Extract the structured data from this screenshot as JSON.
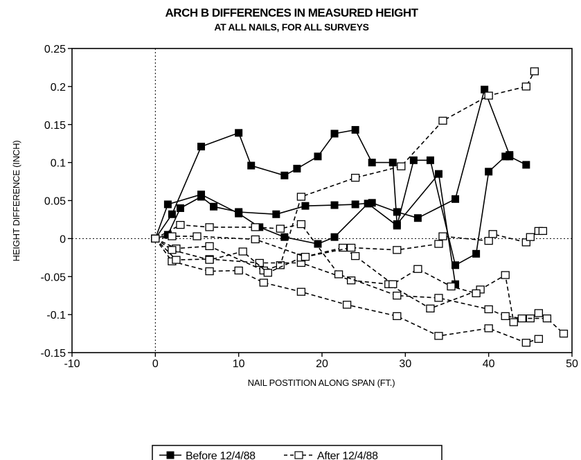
{
  "chart_data": {
    "type": "line",
    "title": "ARCH B DIFFERENCES IN MEASURED HEIGHT",
    "subtitle": "AT ALL NAILS, FOR ALL SURVEYS",
    "xlabel": "NAIL POSTITION ALONG SPAN (FT.)",
    "ylabel": "HEIGHT DIFFERENCE (INCH)",
    "xlim": [
      -10,
      50
    ],
    "ylim": [
      -0.15,
      0.25
    ],
    "x_ticks": [
      "-10",
      "0",
      "10",
      "20",
      "30",
      "40",
      "50"
    ],
    "y_ticks": [
      "0.25",
      "0.2",
      "0.15",
      "0.1",
      "0.05",
      "0",
      "-0.05",
      "-0.1",
      "-0.15"
    ],
    "x_tick_values": [
      -10,
      0,
      10,
      20,
      30,
      40,
      50
    ],
    "y_tick_values": [
      0.25,
      0.2,
      0.15,
      0.1,
      0.05,
      0,
      -0.05,
      -0.1,
      -0.15
    ],
    "reference_lines": {
      "x": 0,
      "y": 0,
      "style": "dotted"
    },
    "legend": {
      "position": "bottom-center",
      "entries": [
        "Before 12/4/88",
        "After 12/4/88"
      ]
    },
    "series": [
      {
        "name": "Before 12/4/88",
        "marker": "filled-square",
        "line": "solid",
        "points": [
          [
            0,
            0
          ],
          [
            1.5,
            0.045
          ],
          [
            5.5,
            0.058
          ],
          [
            10,
            0.033
          ],
          [
            12.5,
            0.015
          ],
          [
            15.5,
            0.002
          ],
          [
            19.5,
            -0.007
          ],
          [
            21.5,
            0.002
          ],
          [
            25.5,
            0.046
          ],
          [
            29,
            0.017
          ],
          [
            31,
            0.103
          ],
          [
            33,
            0.103
          ],
          [
            36,
            -0.035
          ],
          [
            38.5,
            -0.02
          ],
          [
            40,
            0.088
          ],
          [
            42,
            0.108
          ],
          [
            42.5,
            0.108
          ],
          [
            44.5,
            0.097
          ]
        ]
      },
      {
        "name": "Before 12/4/88",
        "marker": "filled-square",
        "line": "solid",
        "points": [
          [
            0,
            0
          ],
          [
            2,
            0.032
          ],
          [
            5.5,
            0.121
          ],
          [
            10,
            0.139
          ],
          [
            11.5,
            0.096
          ],
          [
            15.5,
            0.083
          ],
          [
            17,
            0.092
          ],
          [
            19.5,
            0.108
          ],
          [
            21.5,
            0.138
          ],
          [
            24,
            0.143
          ],
          [
            26,
            0.1
          ],
          [
            28.5,
            0.1
          ],
          [
            29,
            0.019
          ],
          [
            34,
            0.085
          ],
          [
            36,
            -0.06
          ]
        ]
      },
      {
        "name": "Before 12/4/88",
        "marker": "filled-square",
        "line": "solid",
        "points": [
          [
            0,
            0
          ],
          [
            1.5,
            0.005
          ],
          [
            3,
            0.04
          ],
          [
            5.5,
            0.055
          ],
          [
            7,
            0.042
          ],
          [
            10,
            0.035
          ],
          [
            14.5,
            0.032
          ],
          [
            18,
            0.043
          ],
          [
            21.5,
            0.044
          ],
          [
            24,
            0.045
          ],
          [
            26,
            0.047
          ],
          [
            29,
            0.035
          ],
          [
            31.5,
            0.027
          ],
          [
            36,
            0.052
          ],
          [
            39.5,
            0.196
          ],
          [
            42.5,
            0.11
          ]
        ]
      },
      {
        "name": "After 12/4/88",
        "marker": "open-square",
        "line": "dashed",
        "points": [
          [
            0,
            0
          ],
          [
            2.5,
            -0.013
          ],
          [
            6.5,
            -0.01
          ],
          [
            13,
            -0.042
          ],
          [
            15,
            -0.035
          ],
          [
            17.5,
            0.055
          ],
          [
            24,
            0.08
          ],
          [
            29.5,
            0.095
          ],
          [
            34.5,
            0.155
          ],
          [
            40,
            0.188
          ],
          [
            44.5,
            0.2
          ],
          [
            45.5,
            0.22
          ]
        ]
      },
      {
        "name": "After 12/4/88",
        "marker": "open-square",
        "line": "dashed",
        "points": [
          [
            0,
            0
          ],
          [
            2,
            -0.03
          ],
          [
            6.5,
            -0.043
          ],
          [
            10,
            -0.042
          ],
          [
            13,
            -0.058
          ],
          [
            17.5,
            -0.07
          ],
          [
            23,
            -0.087
          ],
          [
            29,
            -0.102
          ],
          [
            34,
            -0.128
          ],
          [
            40,
            -0.118
          ],
          [
            44.5,
            -0.137
          ],
          [
            46,
            -0.132
          ]
        ]
      },
      {
        "name": "After 12/4/88",
        "marker": "open-square",
        "line": "dashed",
        "points": [
          [
            0,
            0
          ],
          [
            2.5,
            -0.028
          ],
          [
            6.5,
            -0.027
          ],
          [
            12.5,
            -0.032
          ],
          [
            17.5,
            -0.032
          ],
          [
            23.5,
            -0.055
          ],
          [
            28,
            -0.06
          ],
          [
            33,
            -0.092
          ],
          [
            39,
            -0.067
          ],
          [
            42,
            -0.048
          ],
          [
            43,
            -0.11
          ],
          [
            45,
            -0.105
          ],
          [
            46,
            -0.098
          ]
        ]
      },
      {
        "name": "After 12/4/88",
        "marker": "open-square",
        "line": "dashed",
        "points": [
          [
            0,
            0
          ],
          [
            3,
            0.018
          ],
          [
            6.5,
            0.015
          ],
          [
            12,
            0.015
          ],
          [
            15,
            0.013
          ],
          [
            17.5,
            0.019
          ],
          [
            22,
            -0.047
          ],
          [
            29,
            -0.075
          ],
          [
            34,
            -0.078
          ],
          [
            40,
            -0.093
          ],
          [
            42,
            -0.102
          ],
          [
            44,
            -0.105
          ],
          [
            47,
            -0.105
          ],
          [
            49,
            -0.125
          ]
        ]
      },
      {
        "name": "After 12/4/88",
        "marker": "open-square",
        "line": "dashed",
        "points": [
          [
            0,
            0
          ],
          [
            2,
            -0.015
          ],
          [
            6.5,
            -0.028
          ],
          [
            10.5,
            -0.017
          ],
          [
            13.5,
            -0.045
          ],
          [
            17.5,
            -0.025
          ],
          [
            22.5,
            -0.012
          ],
          [
            24,
            -0.023
          ],
          [
            28.5,
            -0.06
          ],
          [
            31.5,
            -0.04
          ],
          [
            35.5,
            -0.063
          ],
          [
            38.5,
            -0.072
          ]
        ]
      },
      {
        "name": "After 12/4/88",
        "marker": "open-square",
        "line": "dashed",
        "points": [
          [
            0,
            0
          ],
          [
            2,
            0.003
          ],
          [
            5,
            0.003
          ],
          [
            12,
            -0.001
          ],
          [
            18,
            -0.024
          ],
          [
            23.5,
            -0.012
          ],
          [
            29,
            -0.015
          ],
          [
            34,
            -0.007
          ],
          [
            34.5,
            0.003
          ],
          [
            40,
            -0.003
          ],
          [
            40.5,
            0.006
          ],
          [
            44.5,
            -0.005
          ],
          [
            45,
            0.002
          ],
          [
            46,
            0.01
          ],
          [
            46.5,
            0.01
          ]
        ]
      }
    ]
  }
}
